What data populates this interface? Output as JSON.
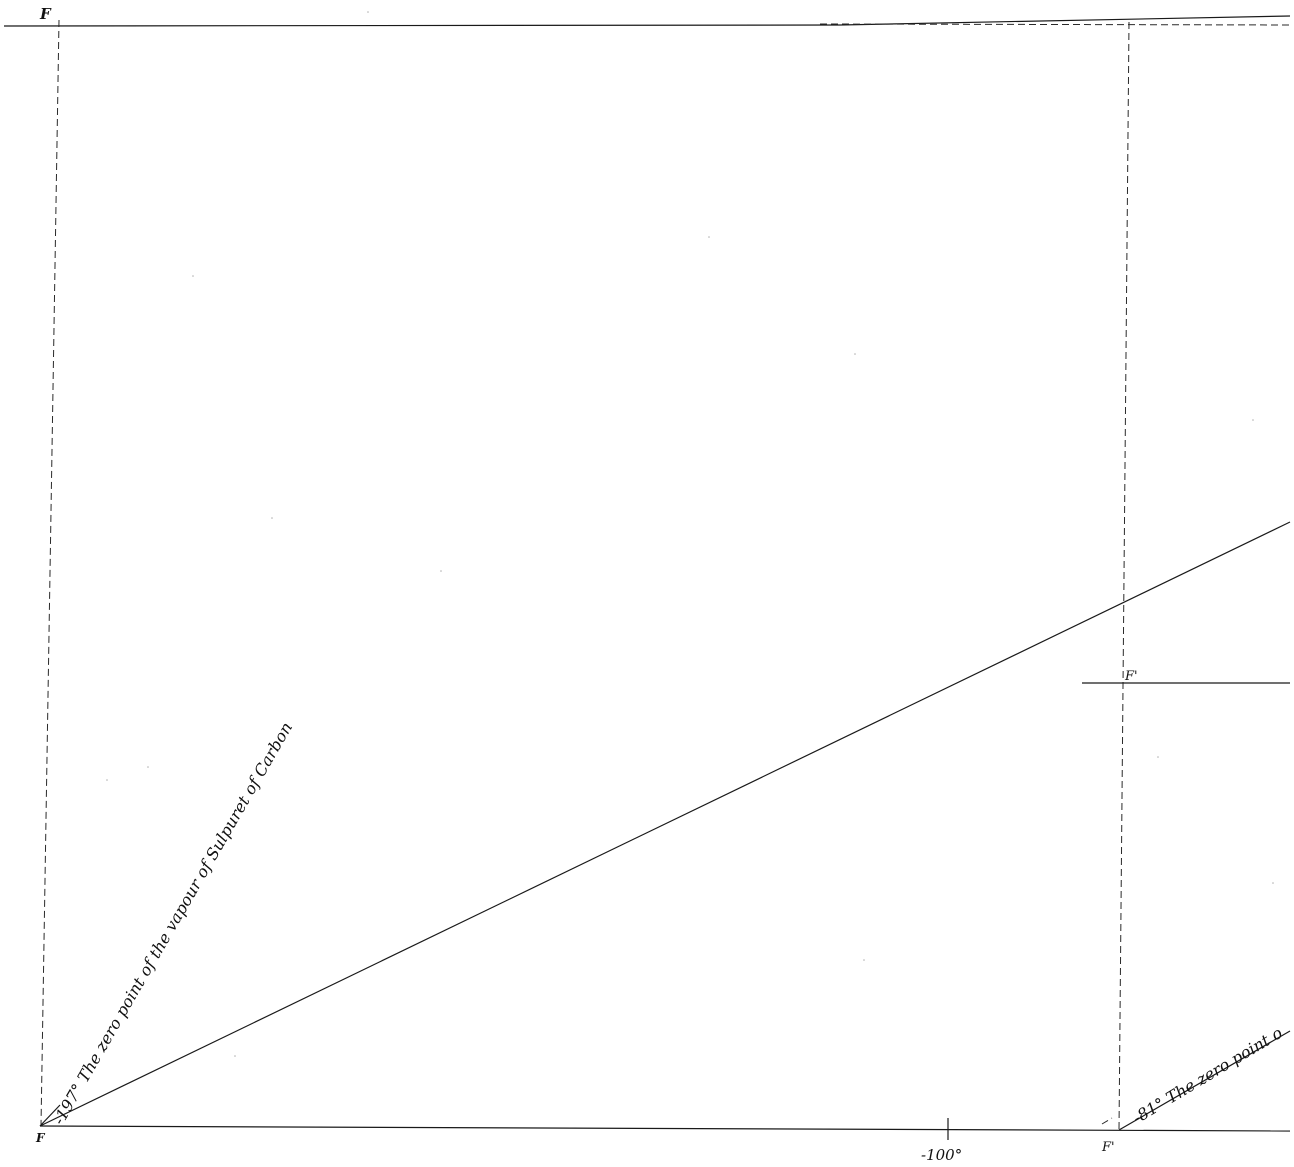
{
  "points": {
    "top_left": "F",
    "bottom_left": "F",
    "right_middle": "F'",
    "bottom_right": "F'"
  },
  "annotations": {
    "left_line": "-197° The zero point of the vapour of Sulpuret of Carbon",
    "right_line": "-81° The zero point o",
    "axis_tick": "-100°"
  }
}
